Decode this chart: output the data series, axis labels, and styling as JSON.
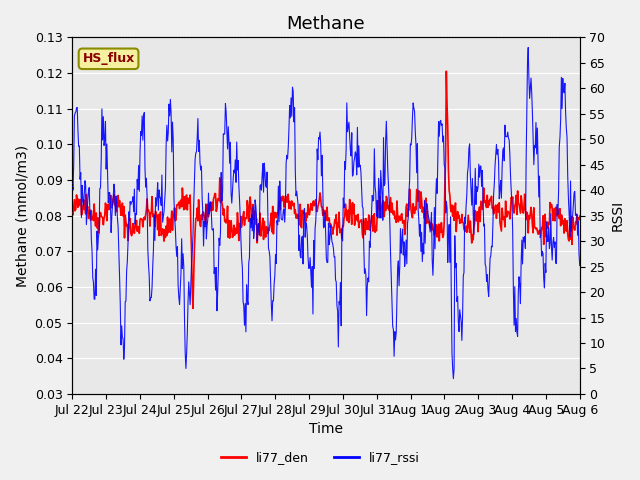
{
  "title": "Methane",
  "xlabel": "Time",
  "ylabel_left": "Methane (mmol/m3)",
  "ylabel_right": "RSSI",
  "annotation": "HS_flux",
  "ylim_left": [
    0.03,
    0.13
  ],
  "ylim_right": [
    0,
    70
  ],
  "yticks_left": [
    0.03,
    0.04,
    0.05,
    0.06,
    0.07,
    0.08,
    0.09,
    0.1,
    0.11,
    0.12,
    0.13
  ],
  "yticks_right": [
    0,
    5,
    10,
    15,
    20,
    25,
    30,
    35,
    40,
    45,
    50,
    55,
    60,
    65,
    70
  ],
  "xtick_labels": [
    "Jul 22",
    "Jul 23",
    "Jul 24",
    "Jul 25",
    "Jul 26",
    "Jul 27",
    "Jul 28",
    "Jul 29",
    "Jul 30",
    "Jul 31",
    "Aug 1",
    "Aug 2",
    "Aug 3",
    "Aug 4",
    "Aug 5",
    "Aug 6"
  ],
  "color_red": "#ff0000",
  "color_blue": "#0000ff",
  "bg_color": "#e8e8e8",
  "legend_labels": [
    "li77_den",
    "li77_rssi"
  ],
  "title_fontsize": 13,
  "label_fontsize": 10,
  "tick_fontsize": 9
}
